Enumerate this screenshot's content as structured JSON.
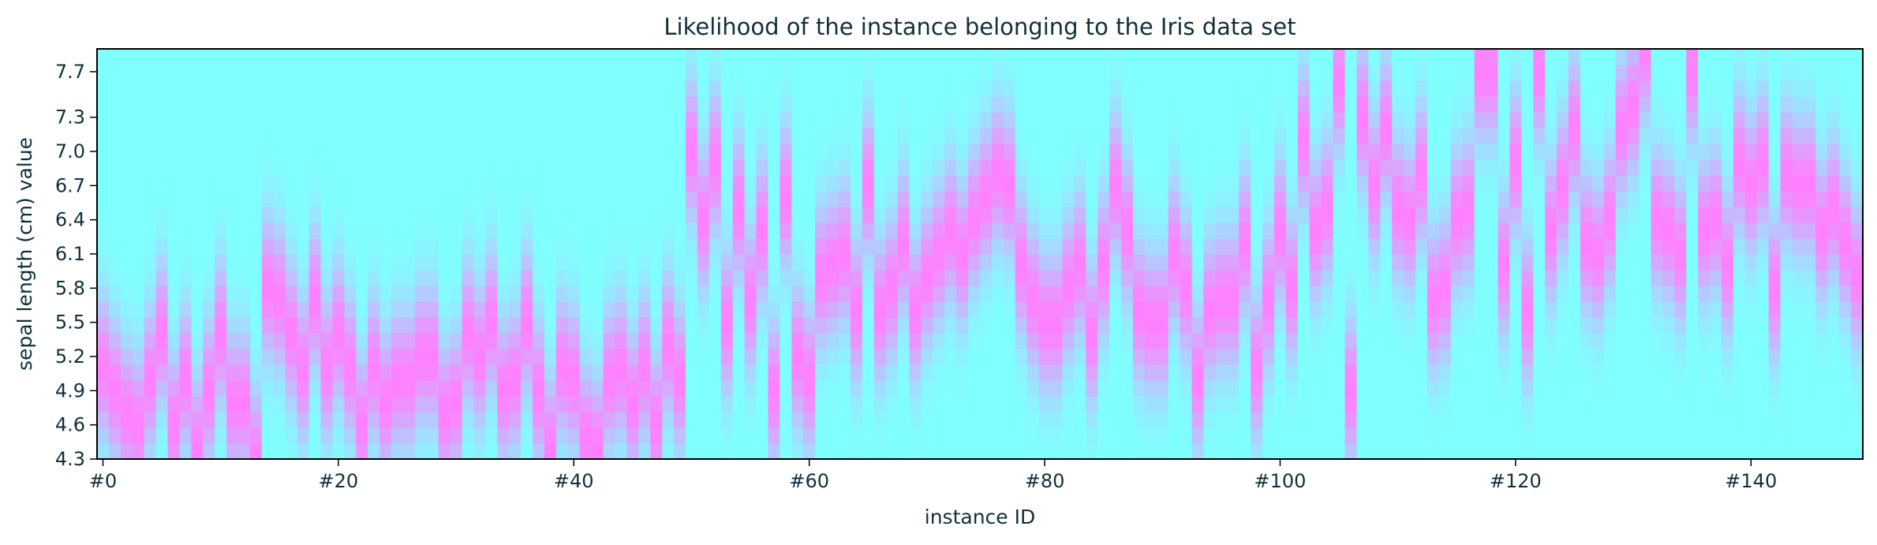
{
  "chart_data": {
    "type": "heatmap",
    "title": "Likelihood of the instance belonging to the Iris data set",
    "xlabel": "instance ID",
    "ylabel": "sepal length (cm) value",
    "x_range": [
      0,
      149
    ],
    "y_range": [
      4.3,
      7.9
    ],
    "x_tick_values": [
      0,
      20,
      40,
      60,
      80,
      100,
      120,
      140
    ],
    "x_tick_labels": [
      "#0",
      "#20",
      "#40",
      "#60",
      "#80",
      "#100",
      "#120",
      "#140"
    ],
    "y_tick_values": [
      4.3,
      4.6,
      4.9,
      5.2,
      5.5,
      5.8,
      6.1,
      6.4,
      6.7,
      7.0,
      7.3,
      7.7
    ],
    "y_tick_labels": [
      "4.3",
      "4.6",
      "4.9",
      "5.2",
      "5.5",
      "5.8",
      "6.1",
      "6.4",
      "6.7",
      "7.0",
      "7.3",
      "7.7"
    ],
    "colormap": {
      "low": "#80ffff",
      "high": "#ff80ff"
    },
    "grid": false,
    "instances": [
      5.1,
      4.9,
      4.7,
      4.6,
      5.0,
      5.4,
      4.6,
      5.0,
      4.4,
      4.9,
      5.4,
      4.8,
      4.8,
      4.3,
      5.8,
      5.7,
      5.4,
      5.1,
      5.7,
      5.1,
      5.4,
      5.1,
      4.6,
      5.1,
      4.8,
      5.0,
      5.0,
      5.2,
      5.2,
      4.7,
      4.8,
      5.4,
      5.2,
      5.5,
      4.9,
      5.0,
      5.5,
      4.9,
      4.4,
      5.1,
      5.0,
      4.5,
      4.4,
      5.0,
      5.1,
      4.8,
      5.1,
      4.6,
      5.3,
      5.0,
      7.0,
      6.4,
      6.9,
      5.5,
      6.5,
      5.7,
      6.3,
      4.9,
      6.6,
      5.2,
      5.0,
      5.9,
      6.0,
      6.1,
      5.6,
      6.7,
      5.6,
      5.8,
      6.2,
      5.6,
      5.9,
      6.1,
      6.3,
      6.1,
      6.4,
      6.6,
      6.8,
      6.7,
      6.0,
      5.7,
      5.5,
      5.5,
      5.8,
      6.0,
      5.4,
      6.0,
      6.7,
      6.3,
      5.6,
      5.5,
      5.5,
      6.1,
      5.8,
      5.0,
      5.6,
      5.7,
      5.7,
      6.2,
      5.1,
      5.7,
      6.3,
      5.8,
      7.1,
      6.3,
      6.5,
      7.6,
      4.9,
      7.3,
      6.7,
      7.2,
      6.5,
      6.4,
      6.8,
      5.7,
      5.8,
      6.4,
      6.5,
      7.7,
      7.7,
      6.0,
      6.9,
      5.6,
      7.7,
      6.3,
      6.7,
      7.2,
      6.2,
      6.1,
      6.4,
      7.2,
      7.4,
      7.9,
      6.4,
      6.3,
      6.1,
      7.7,
      6.3,
      6.4,
      6.0,
      6.9,
      6.7,
      6.9,
      5.8,
      6.8,
      6.7,
      6.7,
      6.3,
      6.5,
      6.2,
      5.9
    ],
    "sigma": 0.42
  }
}
